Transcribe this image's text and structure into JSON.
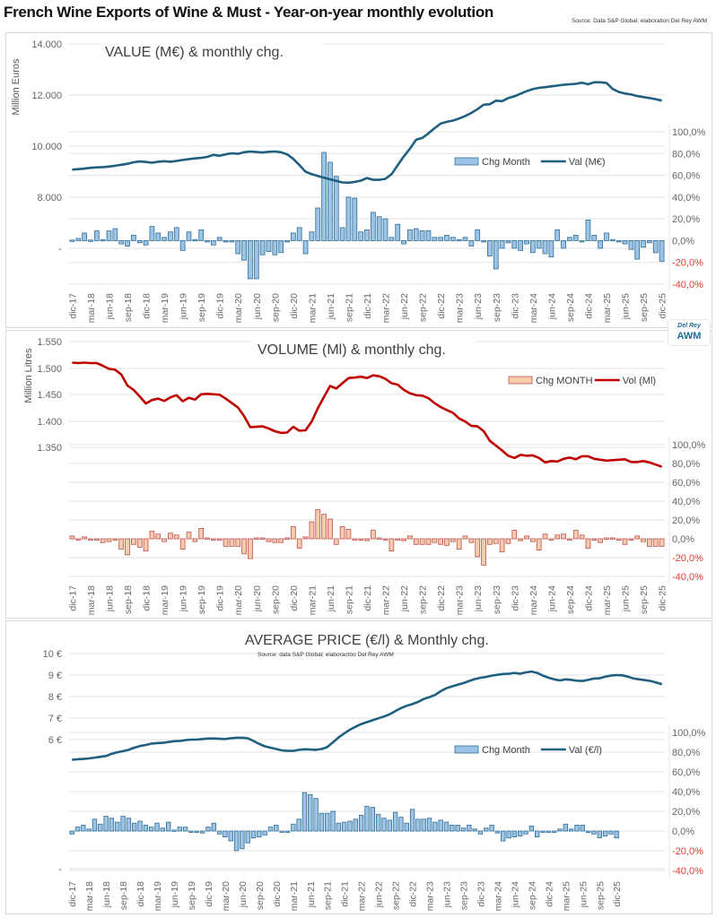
{
  "header": {
    "title": "French Wine Exports of Wine & Must - Year-on-year monthly evolution",
    "source": "Source: Data S&P Global; elaboration Del Rey AWM"
  },
  "logo": {
    "line1": "Del Rey",
    "line2": "AWM"
  },
  "colors": {
    "value_line": "#1f5f80",
    "value_bar_fill": "#9dc3e6",
    "value_bar_stroke": "#2e6f96",
    "volume_line": "#c00000",
    "volume_bar_fill": "#f8cbad",
    "volume_bar_stroke": "#c0504d",
    "negative_tick": "#e03c31",
    "grid": "#e3e3e3",
    "axis_text": "#666666"
  },
  "chart_data": [
    {
      "type": "line+bar",
      "title": "VALUE (M€) & monthly chg.",
      "ylabel": "Million Euros",
      "left_ticks": [
        "14.000",
        "12.000",
        "10.000",
        "8.000",
        "-"
      ],
      "left_ylim": [
        6000,
        14000
      ],
      "right_ticks": [
        "100,0%",
        "80,0%",
        "60,0%",
        "40,0%",
        "20,0%",
        "0,0%",
        "-20,0%",
        "-40,0%"
      ],
      "right_ylim": [
        -40,
        100
      ],
      "legend": {
        "bar": "Chg Month",
        "line": "Val (M€)",
        "position": "right-middle"
      },
      "x_tick_labels": [
        "dic-17",
        "mar-18",
        "jun-18",
        "sep-18",
        "dic-18",
        "mar-19",
        "jun-19",
        "sep-19",
        "dic-19",
        "mar-20",
        "jun-20",
        "sep-20",
        "dic-20",
        "mar-21",
        "jun-21",
        "sep-21",
        "dic-21",
        "mar-22",
        "jun-22",
        "sep-22",
        "dic-22",
        "mar-23",
        "jun-23",
        "sep-23",
        "dic-23",
        "mar-24",
        "jun-24",
        "sep-24",
        "dic-24",
        "mar-25",
        "jun-25",
        "sep-25",
        "dic-25"
      ],
      "series": [
        {
          "name": "Val (M€)",
          "kind": "line",
          "axis": "left",
          "values": [
            9080,
            9100,
            9120,
            9150,
            9170,
            9180,
            9200,
            9230,
            9270,
            9310,
            9370,
            9400,
            9380,
            9350,
            9390,
            9410,
            9390,
            9420,
            9460,
            9490,
            9520,
            9540,
            9580,
            9660,
            9620,
            9680,
            9720,
            9700,
            9760,
            9790,
            9770,
            9750,
            9780,
            9790,
            9760,
            9680,
            9500,
            9260,
            9000,
            8900,
            8830,
            8760,
            8700,
            8640,
            8580,
            8570,
            8600,
            8650,
            8750,
            8680,
            8680,
            8720,
            8900,
            9250,
            9600,
            9900,
            10250,
            10320,
            10500,
            10700,
            10880,
            10950,
            11000,
            11080,
            11180,
            11300,
            11450,
            11620,
            11640,
            11780,
            11760,
            11880,
            11950,
            12050,
            12150,
            12230,
            12280,
            12310,
            12340,
            12370,
            12400,
            12420,
            12440,
            12480,
            12420,
            12500,
            12500,
            12470,
            12240,
            12120,
            12060,
            12020,
            11960,
            11920,
            11880,
            11840,
            11780
          ]
        },
        {
          "name": "Chg Month",
          "kind": "bar",
          "axis": "right",
          "values": [
            0.5,
            2,
            7,
            0.5,
            9,
            1,
            9,
            11,
            -3,
            -5,
            5,
            -2,
            -4,
            13,
            7,
            3,
            8,
            12,
            -9,
            8,
            1,
            10,
            -1,
            -4,
            3,
            -1,
            0,
            -12,
            -18,
            -35,
            -35,
            -13,
            -10,
            -13,
            -11,
            0,
            7,
            12,
            -12,
            8,
            30,
            81,
            72,
            59,
            12,
            40,
            39,
            8,
            10,
            26,
            22,
            20,
            3,
            15,
            -3,
            10,
            11,
            9,
            9,
            3,
            3,
            5,
            3,
            1,
            3,
            -5,
            10,
            0,
            -14,
            -26,
            -7,
            -2,
            -7,
            -9,
            -3,
            -11,
            -7,
            -12,
            -15,
            10,
            -7,
            3,
            5,
            -1,
            19,
            5,
            -7,
            7,
            1,
            -1,
            -3,
            -8,
            -17,
            -6,
            -2,
            -11,
            -19
          ]
        }
      ]
    },
    {
      "type": "line+bar",
      "title": "VOLUME (Ml) & monthly chg.",
      "ylabel": "Million Litres",
      "left_ticks": [
        "1.550",
        "1.500",
        "1.450",
        "1.400",
        "1.350"
      ],
      "left_ylim": [
        1250,
        1550
      ],
      "right_ticks": [
        "100,0%",
        "80,0%",
        "60,0%",
        "40,0%",
        "20,0%",
        "0,0%",
        "-20,0%",
        "-40,0%"
      ],
      "right_ylim": [
        -40,
        100
      ],
      "legend": {
        "bar": "Chg MONTH",
        "line": "Vol (Ml)",
        "position": "top-right"
      },
      "x_tick_labels": [
        "dic-17",
        "mar-18",
        "jun-18",
        "sep-18",
        "dic-18",
        "mar-19",
        "jun-19",
        "sep-19",
        "dic-19",
        "mar-20",
        "jun-20",
        "sep-20",
        "dic-20",
        "mar-21",
        "jun-21",
        "sep-21",
        "dic-21",
        "mar-22",
        "jun-22",
        "sep-22",
        "dic-22",
        "mar-23",
        "jun-23",
        "sep-23",
        "dic-23",
        "mar-24",
        "jun-24",
        "sep-24",
        "dic-24",
        "mar-25",
        "jun-25",
        "sep-25",
        "dic-25"
      ],
      "series": [
        {
          "name": "Vol (Ml)",
          "kind": "line",
          "axis": "left",
          "values": [
            1502,
            1501,
            1502,
            1501,
            1501,
            1495,
            1488,
            1486,
            1475,
            1450,
            1440,
            1425,
            1409,
            1417,
            1420,
            1415,
            1423,
            1428,
            1414,
            1422,
            1418,
            1430,
            1431,
            1430,
            1429,
            1420,
            1410,
            1400,
            1380,
            1355,
            1356,
            1357,
            1352,
            1346,
            1342,
            1343,
            1356,
            1347,
            1348,
            1368,
            1398,
            1424,
            1449,
            1443,
            1455,
            1467,
            1468,
            1470,
            1467,
            1473,
            1471,
            1465,
            1455,
            1452,
            1440,
            1432,
            1428,
            1427,
            1421,
            1410,
            1401,
            1394,
            1388,
            1375,
            1368,
            1358,
            1357,
            1346,
            1324,
            1313,
            1302,
            1290,
            1285,
            1292,
            1290,
            1291,
            1285,
            1275,
            1278,
            1277,
            1283,
            1286,
            1282,
            1289,
            1289,
            1283,
            1281,
            1279,
            1280,
            1281,
            1282,
            1276,
            1276,
            1278,
            1275,
            1270,
            1265
          ]
        },
        {
          "name": "Chg MONTH",
          "kind": "bar",
          "axis": "right",
          "values": [
            3,
            -1,
            2,
            -1,
            0,
            -4,
            -3,
            -1,
            -11,
            -17,
            -6,
            -9,
            -13,
            8,
            5,
            -3,
            6,
            4,
            -11,
            7,
            -3,
            11,
            1,
            -1,
            -1,
            -8,
            -8,
            -8,
            -16,
            -21,
            1,
            1,
            -3,
            -4,
            -4,
            1,
            13,
            -10,
            2,
            18,
            31,
            26,
            21,
            -6,
            13,
            10,
            0,
            0,
            -2,
            9,
            1,
            -1,
            -13,
            -1,
            -2,
            3,
            -6,
            -6,
            -6,
            -4,
            -6,
            -7,
            -3,
            -11,
            3,
            -4,
            -19,
            -28,
            -6,
            -5,
            -14,
            -5,
            9,
            -2,
            3,
            -3,
            -12,
            5,
            -1,
            4,
            5,
            -1,
            9,
            4,
            -10,
            -1,
            -4,
            1,
            1,
            -1,
            -6,
            -1,
            3,
            -3,
            -8,
            -8,
            -8
          ]
        }
      ]
    },
    {
      "type": "line+bar",
      "title": "AVERAGE PRICE (€/l) & Monthly chg.",
      "subtitle": "Source: data S&P Global; elaboractóo Del Rey AWM",
      "ylabel": "",
      "left_ticks": [
        "10 €",
        "9 €",
        "8 €",
        "7 €",
        "6 €",
        "-"
      ],
      "left_ylim": [
        2,
        10
      ],
      "right_ticks": [
        "100,0%",
        "80,0%",
        "60,0%",
        "40,0%",
        "20,0%",
        "0,0%",
        "-20,0%",
        "-40,0%"
      ],
      "right_ylim": [
        -40,
        100
      ],
      "legend": {
        "bar": "Chg Month",
        "line": "Val (€/l)",
        "position": "right-middle"
      },
      "x_tick_labels": [
        "dic-17",
        "mar-18",
        "jun-18",
        "sep-18",
        "dic-18",
        "mar-19",
        "jun-19",
        "sep-19",
        "dic-19",
        "mar-20",
        "jun-20",
        "sep-20",
        "dic-20",
        "mar-21",
        "jun-21",
        "sep-21",
        "dic-21",
        "mar-22",
        "jun-22",
        "sep-22",
        "dic-22",
        "mar-23",
        "jun-23",
        "sep-23",
        "dic-23",
        "mar-24",
        "jun-24",
        "sep-24",
        "dic-24",
        "mar-25",
        "jun-25",
        "sep-25",
        "dic-25"
      ],
      "series": [
        {
          "name": "Val (€/l)",
          "kind": "line",
          "axis": "left",
          "values": [
            6.05,
            6.07,
            6.08,
            6.1,
            6.13,
            6.16,
            6.19,
            6.27,
            6.33,
            6.37,
            6.42,
            6.5,
            6.56,
            6.6,
            6.65,
            6.67,
            6.68,
            6.71,
            6.74,
            6.75,
            6.78,
            6.8,
            6.8,
            6.82,
            6.84,
            6.84,
            6.83,
            6.82,
            6.85,
            6.87,
            6.87,
            6.85,
            6.75,
            6.64,
            6.55,
            6.5,
            6.45,
            6.4,
            6.38,
            6.38,
            6.42,
            6.44,
            6.43,
            6.42,
            6.45,
            6.52,
            6.7,
            6.88,
            7.03,
            7.17,
            7.28,
            7.38,
            7.45,
            7.52,
            7.59,
            7.66,
            7.74,
            7.86,
            7.97,
            8.06,
            8.12,
            8.2,
            8.31,
            8.38,
            8.46,
            8.6,
            8.71,
            8.78,
            8.84,
            8.9,
            8.98,
            9.05,
            9.1,
            9.13,
            9.18,
            9.21,
            9.24,
            9.25,
            9.28,
            9.25,
            9.3,
            9.33,
            9.28,
            9.18,
            9.1,
            9.04,
            9.0,
            9.04,
            9.02,
            8.99,
            8.98,
            9.02,
            9.07,
            9.08,
            9.14,
            9.18,
            9.2,
            9.19,
            9.14,
            9.07,
            9.04,
            9.01,
            8.98,
            8.92,
            8.86
          ]
        },
        {
          "name": "Chg Month",
          "kind": "bar",
          "axis": "right",
          "values": [
            -3,
            4,
            6,
            2,
            12,
            7,
            15,
            13,
            9,
            15,
            13,
            8,
            10,
            6,
            4,
            8,
            3,
            9,
            1,
            4,
            4,
            -1,
            -1,
            -2,
            4,
            8,
            -3,
            -6,
            -10,
            -20,
            -18,
            -12,
            -7,
            -6,
            -4,
            4,
            6,
            -1,
            -1,
            7,
            12,
            39,
            37,
            33,
            18,
            18,
            20,
            8,
            9,
            10,
            12,
            16,
            25,
            24,
            17,
            13,
            11,
            19,
            14,
            8,
            22,
            12,
            12,
            13,
            9,
            11,
            9,
            6,
            6,
            3,
            6,
            2,
            -3,
            3,
            6,
            -2,
            -10,
            -7,
            -6,
            -5,
            -3,
            5,
            -6,
            -1,
            -1,
            -1,
            2,
            7,
            2,
            6,
            6,
            -1,
            -3,
            -7,
            -5,
            -3,
            -7
          ]
        }
      ]
    }
  ]
}
